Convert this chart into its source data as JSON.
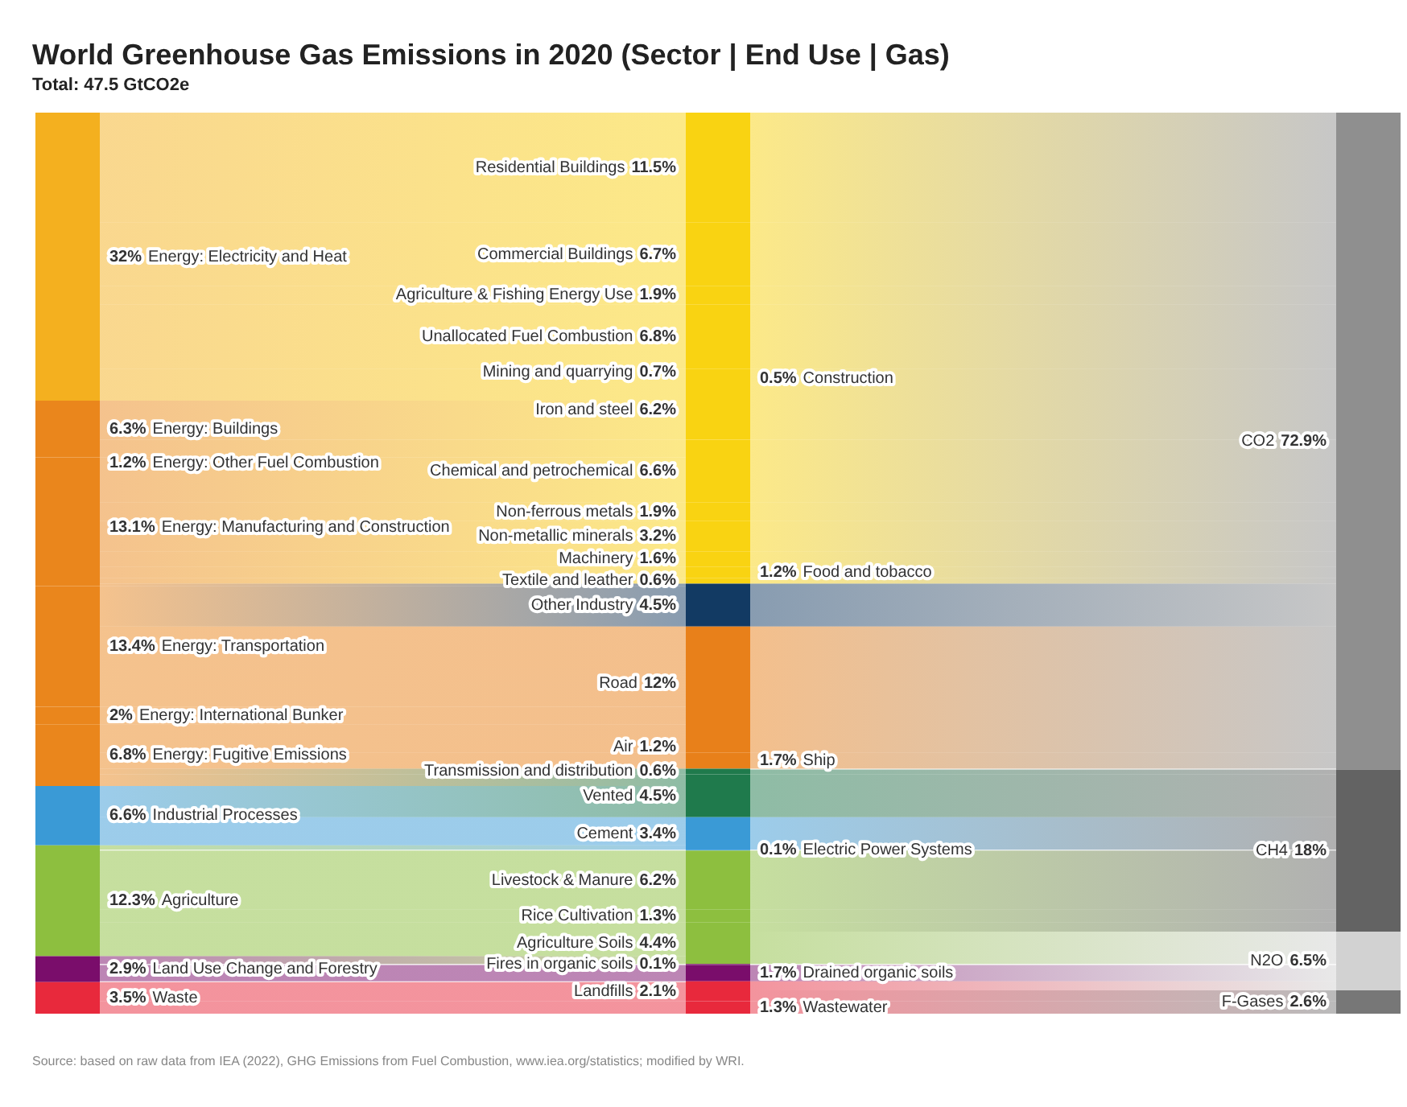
{
  "chart_data": [
    {
      "type": "other",
      "title": "World Greenhouse Gas Emissions in 2020 (Sector | End Use | Gas)",
      "subtitle": "Total: 47.5 GtCO2e",
      "annotations": [
        "Source: based on raw data from IEA (2022), GHG Emissions from Fuel Combustion, www.iea.org/statistics; modified by WRI."
      ],
      "categories": [
        "Energy: Electricity and Heat",
        "Energy: Buildings",
        "Energy: Other Fuel Combustion",
        "Energy: Manufacturing and Construction",
        "Energy: Transportation",
        "Energy: International Bunker",
        "Energy: Fugitive Emissions",
        "Industrial Processes",
        "Agriculture",
        "Land Use Change and Forestry",
        "Waste"
      ],
      "values": [
        32,
        6.3,
        1.2,
        13.1,
        13.4,
        2,
        6.8,
        6.6,
        12.3,
        2.9,
        3.5
      ],
      "value_labels": [
        "32%",
        "6.3%",
        "1.2%",
        "13.1%",
        "13.4%",
        "2%",
        "6.8%",
        "6.6%",
        "12.3%",
        "2.9%",
        "3.5%"
      ],
      "colors": [
        "#f4b01f",
        "#ea861c",
        "#ea861c",
        "#ea861c",
        "#ea861c",
        "#ea861c",
        "#ea861c",
        "#3a9ad6",
        "#8dbf3f",
        "#7a0d6b",
        "#e8293c"
      ]
    },
    {
      "type": "other",
      "categories": [
        "Residential Buildings",
        "Commercial Buildings",
        "Agriculture & Fishing Energy Use",
        "Unallocated Fuel Combustion",
        "Mining and quarrying",
        "Construction",
        "Iron and steel",
        "Chemical and petrochemical",
        "Non-ferrous metals",
        "Non-metallic minerals",
        "Machinery",
        "Food and tobacco",
        "Textile and leather",
        "Other Industry",
        "Road",
        "Air",
        "Ship",
        "Transmission and distribution",
        "Vented",
        "Cement",
        "Electric Power Systems",
        "Livestock & Manure",
        "Rice Cultivation",
        "Agriculture Soils",
        "Fires in organic soils",
        "Drained organic soils",
        "Landfills",
        "Wastewater"
      ],
      "values": [
        11.5,
        6.7,
        1.9,
        6.8,
        0.7,
        0.5,
        6.2,
        6.6,
        1.9,
        3.2,
        1.6,
        1.2,
        0.6,
        4.5,
        12,
        1.2,
        1.7,
        0.6,
        4.5,
        3.4,
        0.1,
        6.2,
        1.3,
        4.4,
        0.1,
        1.7,
        2.1,
        1.3
      ],
      "value_labels": [
        "11.5%",
        "6.7%",
        "1.9%",
        "6.8%",
        "0.7%",
        "0.5%",
        "6.2%",
        "6.6%",
        "1.9%",
        "3.2%",
        "1.6%",
        "1.2%",
        "0.6%",
        "4.5%",
        "12%",
        "1.2%",
        "1.7%",
        "0.6%",
        "4.5%",
        "3.4%",
        "0.1%",
        "6.2%",
        "1.3%",
        "4.4%",
        "0.1%",
        "1.7%",
        "2.1%",
        "1.3%"
      ],
      "colors": [
        "#f9d312",
        "#f9d312",
        "#f9d312",
        "#f9d312",
        "#f9d312",
        "#f9d312",
        "#f9d312",
        "#f9d312",
        "#f9d312",
        "#f9d312",
        "#f9d312",
        "#f9d312",
        "#f9d312",
        "#123a63",
        "#e8801a",
        "#e8801a",
        "#e8801a",
        "#1f7a4c",
        "#1f7a4c",
        "#3a9ad6",
        "#3a9ad6",
        "#8dbf3f",
        "#8dbf3f",
        "#8dbf3f",
        "#7a0d6b",
        "#7a0d6b",
        "#e8293c",
        "#e8293c"
      ]
    },
    {
      "type": "other",
      "categories": [
        "CO2",
        "CH4",
        "N2O",
        "F-Gases"
      ],
      "values": [
        72.9,
        18,
        6.5,
        2.6
      ],
      "value_labels": [
        "72.9%",
        "18%",
        "6.5%",
        "2.6%"
      ],
      "colors": [
        "#8f8f8f",
        "#636363",
        "#d2d2d2",
        "#777777"
      ]
    }
  ]
}
